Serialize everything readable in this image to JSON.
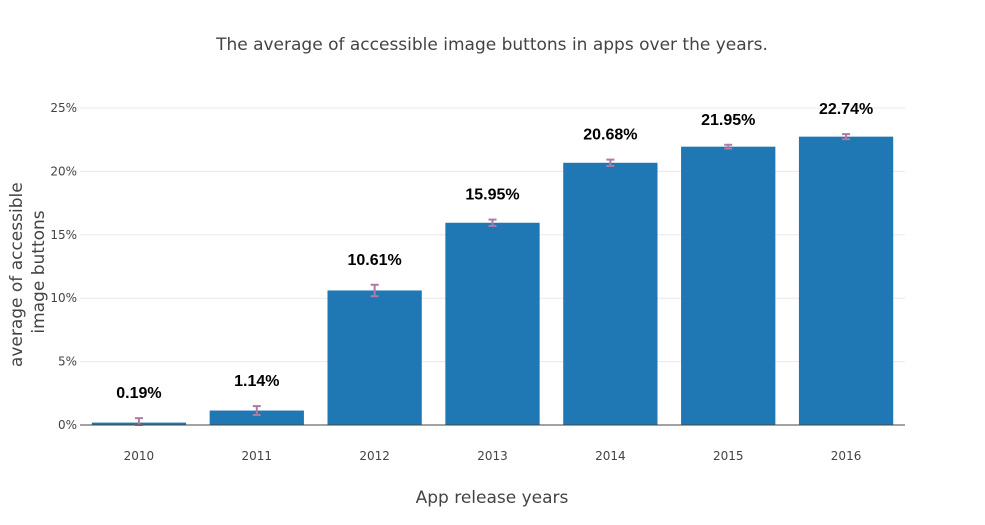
{
  "chart_data": {
    "type": "bar",
    "title": "The average of accessible image buttons in apps over the years.",
    "xlabel": "App release years",
    "ylabel_lines": [
      "average of accessible",
      "image buttons"
    ],
    "categories": [
      "2010",
      "2011",
      "2012",
      "2013",
      "2014",
      "2015",
      "2016"
    ],
    "values": [
      0.19,
      1.14,
      10.61,
      15.95,
      20.68,
      21.95,
      22.74
    ],
    "value_labels": [
      "0.19%",
      "1.14%",
      "10.61%",
      "15.95%",
      "20.68%",
      "21.95%",
      "22.74%"
    ],
    "error": [
      0.35,
      0.35,
      0.45,
      0.25,
      0.25,
      0.15,
      0.2
    ],
    "ylim": [
      0,
      25
    ],
    "yticks": [
      0,
      5,
      10,
      15,
      20,
      25
    ],
    "ytick_labels": [
      "0%",
      "5%",
      "10%",
      "15%",
      "20%",
      "25%"
    ],
    "grid": true,
    "colors": {
      "bar": "#1f77b4",
      "error_bar": "#b07aa1"
    }
  }
}
